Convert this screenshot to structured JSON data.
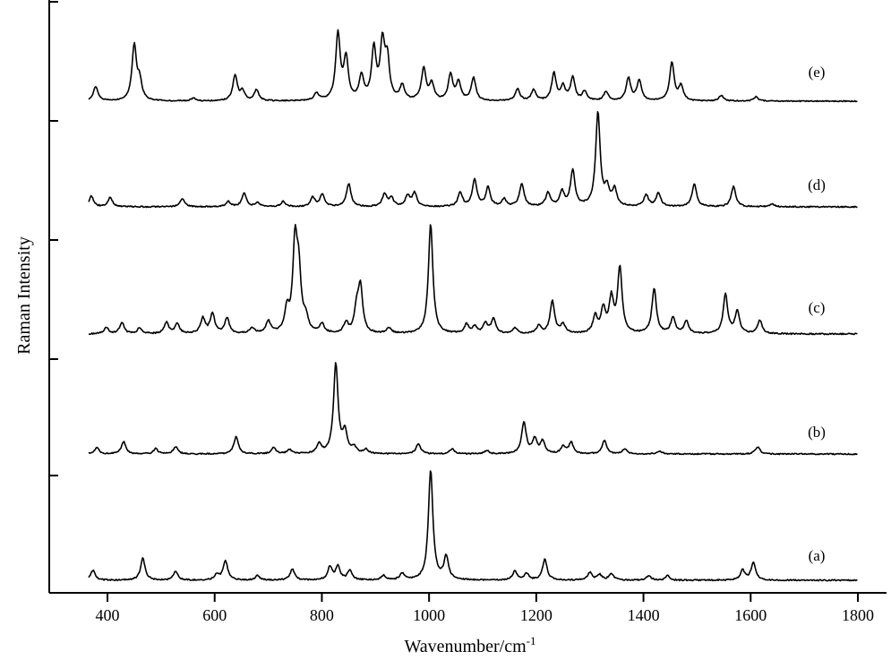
{
  "chart_data": {
    "type": "line",
    "title": "",
    "xlabel": "Wavenumber/cm",
    "xlabel_superscript": "-1",
    "ylabel": "Raman Intensity",
    "xlim": [
      300,
      1850
    ],
    "xticks": [
      400,
      600,
      800,
      1000,
      1200,
      1400,
      1600,
      1800
    ],
    "y_tick_labels_shown": false,
    "grid": false,
    "legend": "none; labels printed at right end of each trace",
    "stacked_offset": true,
    "x_range_plotted": [
      365,
      1800
    ],
    "series": [
      {
        "name": "(a)",
        "peaks": [
          [
            373,
            0.09
          ],
          [
            466,
            0.2
          ],
          [
            527,
            0.08
          ],
          [
            604,
            0.05
          ],
          [
            620,
            0.18
          ],
          [
            680,
            0.04
          ],
          [
            745,
            0.1
          ],
          [
            815,
            0.12
          ],
          [
            830,
            0.12
          ],
          [
            852,
            0.09
          ],
          [
            915,
            0.04
          ],
          [
            950,
            0.06
          ],
          [
            1003,
            1.0
          ],
          [
            1032,
            0.21
          ],
          [
            1160,
            0.08
          ],
          [
            1182,
            0.06
          ],
          [
            1216,
            0.19
          ],
          [
            1300,
            0.07
          ],
          [
            1318,
            0.05
          ],
          [
            1340,
            0.06
          ],
          [
            1410,
            0.04
          ],
          [
            1445,
            0.04
          ],
          [
            1585,
            0.09
          ],
          [
            1605,
            0.16
          ]
        ],
        "end": 1800
      },
      {
        "name": "(b)",
        "peaks": [
          [
            380,
            0.06
          ],
          [
            430,
            0.12
          ],
          [
            490,
            0.05
          ],
          [
            527,
            0.07
          ],
          [
            640,
            0.17
          ],
          [
            710,
            0.06
          ],
          [
            740,
            0.04
          ],
          [
            795,
            0.09
          ],
          [
            826,
            0.87
          ],
          [
            843,
            0.2
          ],
          [
            860,
            0.06
          ],
          [
            882,
            0.04
          ],
          [
            980,
            0.1
          ],
          [
            1043,
            0.05
          ],
          [
            1108,
            0.03
          ],
          [
            1177,
            0.31
          ],
          [
            1197,
            0.14
          ],
          [
            1212,
            0.12
          ],
          [
            1250,
            0.07
          ],
          [
            1265,
            0.11
          ],
          [
            1327,
            0.13
          ],
          [
            1365,
            0.05
          ],
          [
            1430,
            0.03
          ],
          [
            1613,
            0.07
          ]
        ],
        "end": 1800
      },
      {
        "name": "(c)",
        "peaks": [
          [
            398,
            0.06
          ],
          [
            427,
            0.1
          ],
          [
            460,
            0.05
          ],
          [
            510,
            0.1
          ],
          [
            530,
            0.09
          ],
          [
            578,
            0.14
          ],
          [
            596,
            0.18
          ],
          [
            623,
            0.14
          ],
          [
            670,
            0.05
          ],
          [
            700,
            0.11
          ],
          [
            735,
            0.2
          ],
          [
            750,
            0.78
          ],
          [
            757,
            0.48
          ],
          [
            770,
            0.12
          ],
          [
            800,
            0.08
          ],
          [
            845,
            0.09
          ],
          [
            865,
            0.2
          ],
          [
            872,
            0.4
          ],
          [
            925,
            0.05
          ],
          [
            1003,
            0.98
          ],
          [
            1070,
            0.08
          ],
          [
            1085,
            0.06
          ],
          [
            1105,
            0.09
          ],
          [
            1120,
            0.13
          ],
          [
            1160,
            0.05
          ],
          [
            1205,
            0.07
          ],
          [
            1230,
            0.29
          ],
          [
            1250,
            0.08
          ],
          [
            1310,
            0.15
          ],
          [
            1325,
            0.21
          ],
          [
            1340,
            0.3
          ],
          [
            1356,
            0.58
          ],
          [
            1420,
            0.4
          ],
          [
            1455,
            0.14
          ],
          [
            1480,
            0.11
          ],
          [
            1553,
            0.35
          ],
          [
            1575,
            0.2
          ],
          [
            1617,
            0.12
          ]
        ],
        "end": 1800
      },
      {
        "name": "(d)",
        "peaks": [
          [
            370,
            0.1
          ],
          [
            405,
            0.09
          ],
          [
            540,
            0.08
          ],
          [
            625,
            0.05
          ],
          [
            655,
            0.13
          ],
          [
            680,
            0.04
          ],
          [
            728,
            0.05
          ],
          [
            783,
            0.09
          ],
          [
            801,
            0.12
          ],
          [
            850,
            0.22
          ],
          [
            917,
            0.12
          ],
          [
            930,
            0.08
          ],
          [
            960,
            0.1
          ],
          [
            973,
            0.13
          ],
          [
            1058,
            0.13
          ],
          [
            1085,
            0.26
          ],
          [
            1110,
            0.18
          ],
          [
            1140,
            0.07
          ],
          [
            1173,
            0.22
          ],
          [
            1222,
            0.13
          ],
          [
            1248,
            0.14
          ],
          [
            1268,
            0.34
          ],
          [
            1315,
            0.89
          ],
          [
            1332,
            0.16
          ],
          [
            1346,
            0.16
          ],
          [
            1405,
            0.11
          ],
          [
            1428,
            0.13
          ],
          [
            1495,
            0.22
          ],
          [
            1568,
            0.19
          ],
          [
            1640,
            0.03
          ]
        ],
        "end": 1800
      },
      {
        "name": "(e)",
        "peaks": [
          [
            378,
            0.16
          ],
          [
            450,
            0.6
          ],
          [
            460,
            0.2
          ],
          [
            560,
            0.03
          ],
          [
            638,
            0.28
          ],
          [
            652,
            0.1
          ],
          [
            678,
            0.12
          ],
          [
            790,
            0.08
          ],
          [
            830,
            0.72
          ],
          [
            845,
            0.45
          ],
          [
            874,
            0.26
          ],
          [
            897,
            0.55
          ],
          [
            913,
            0.6
          ],
          [
            922,
            0.42
          ],
          [
            950,
            0.16
          ],
          [
            990,
            0.35
          ],
          [
            1005,
            0.18
          ],
          [
            1040,
            0.28
          ],
          [
            1055,
            0.2
          ],
          [
            1083,
            0.25
          ],
          [
            1165,
            0.13
          ],
          [
            1195,
            0.12
          ],
          [
            1233,
            0.3
          ],
          [
            1250,
            0.15
          ],
          [
            1268,
            0.25
          ],
          [
            1290,
            0.1
          ],
          [
            1330,
            0.1
          ],
          [
            1372,
            0.25
          ],
          [
            1392,
            0.22
          ],
          [
            1453,
            0.42
          ],
          [
            1470,
            0.16
          ],
          [
            1545,
            0.06
          ],
          [
            1610,
            0.05
          ]
        ],
        "end": 1800
      }
    ]
  }
}
